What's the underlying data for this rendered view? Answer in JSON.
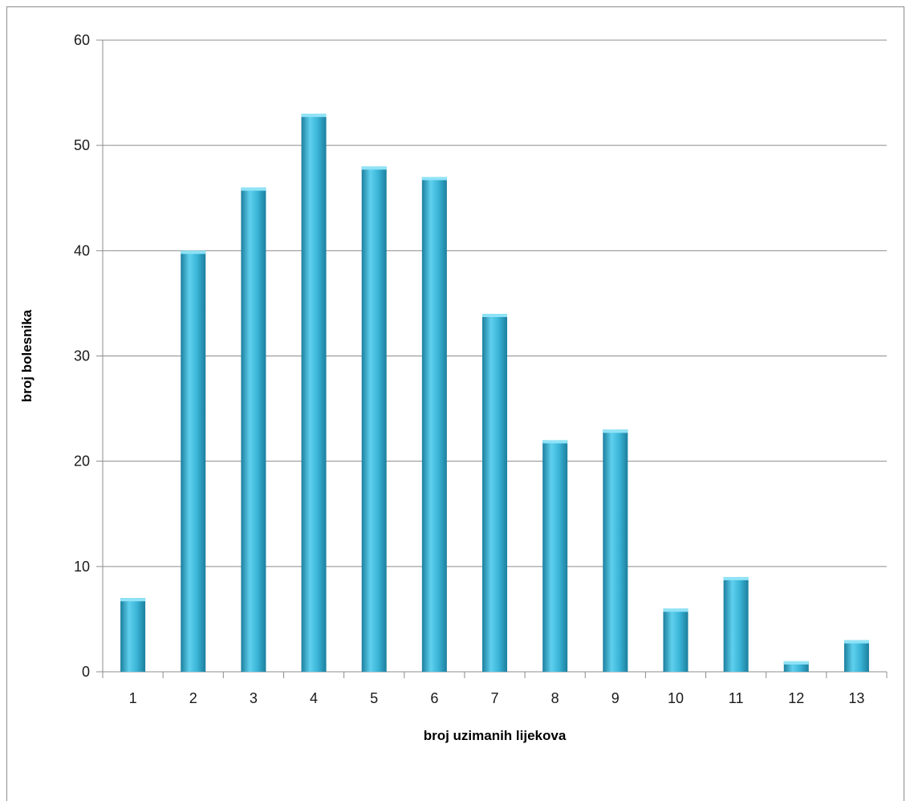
{
  "chart_data": {
    "type": "bar",
    "title": "",
    "xlabel": "broj uzimanih lijekova",
    "ylabel": "broj bolesnika",
    "categories": [
      "1",
      "2",
      "3",
      "4",
      "5",
      "6",
      "7",
      "8",
      "9",
      "10",
      "11",
      "12",
      "13"
    ],
    "values": [
      7,
      40,
      46,
      53,
      48,
      47,
      34,
      22,
      23,
      6,
      9,
      1,
      3
    ],
    "ylim": [
      0,
      60
    ],
    "yticks": [
      "0",
      "10",
      "20",
      "30",
      "40",
      "50",
      "60"
    ],
    "grid": true,
    "legend": "none",
    "colors": {
      "bar_light": "#5fd0ee",
      "bar_mid": "#3bb5d8",
      "bar_dark": "#1c7f9e",
      "bar_top": "#8fe3f7",
      "gridline": "#8c8c8c"
    }
  }
}
